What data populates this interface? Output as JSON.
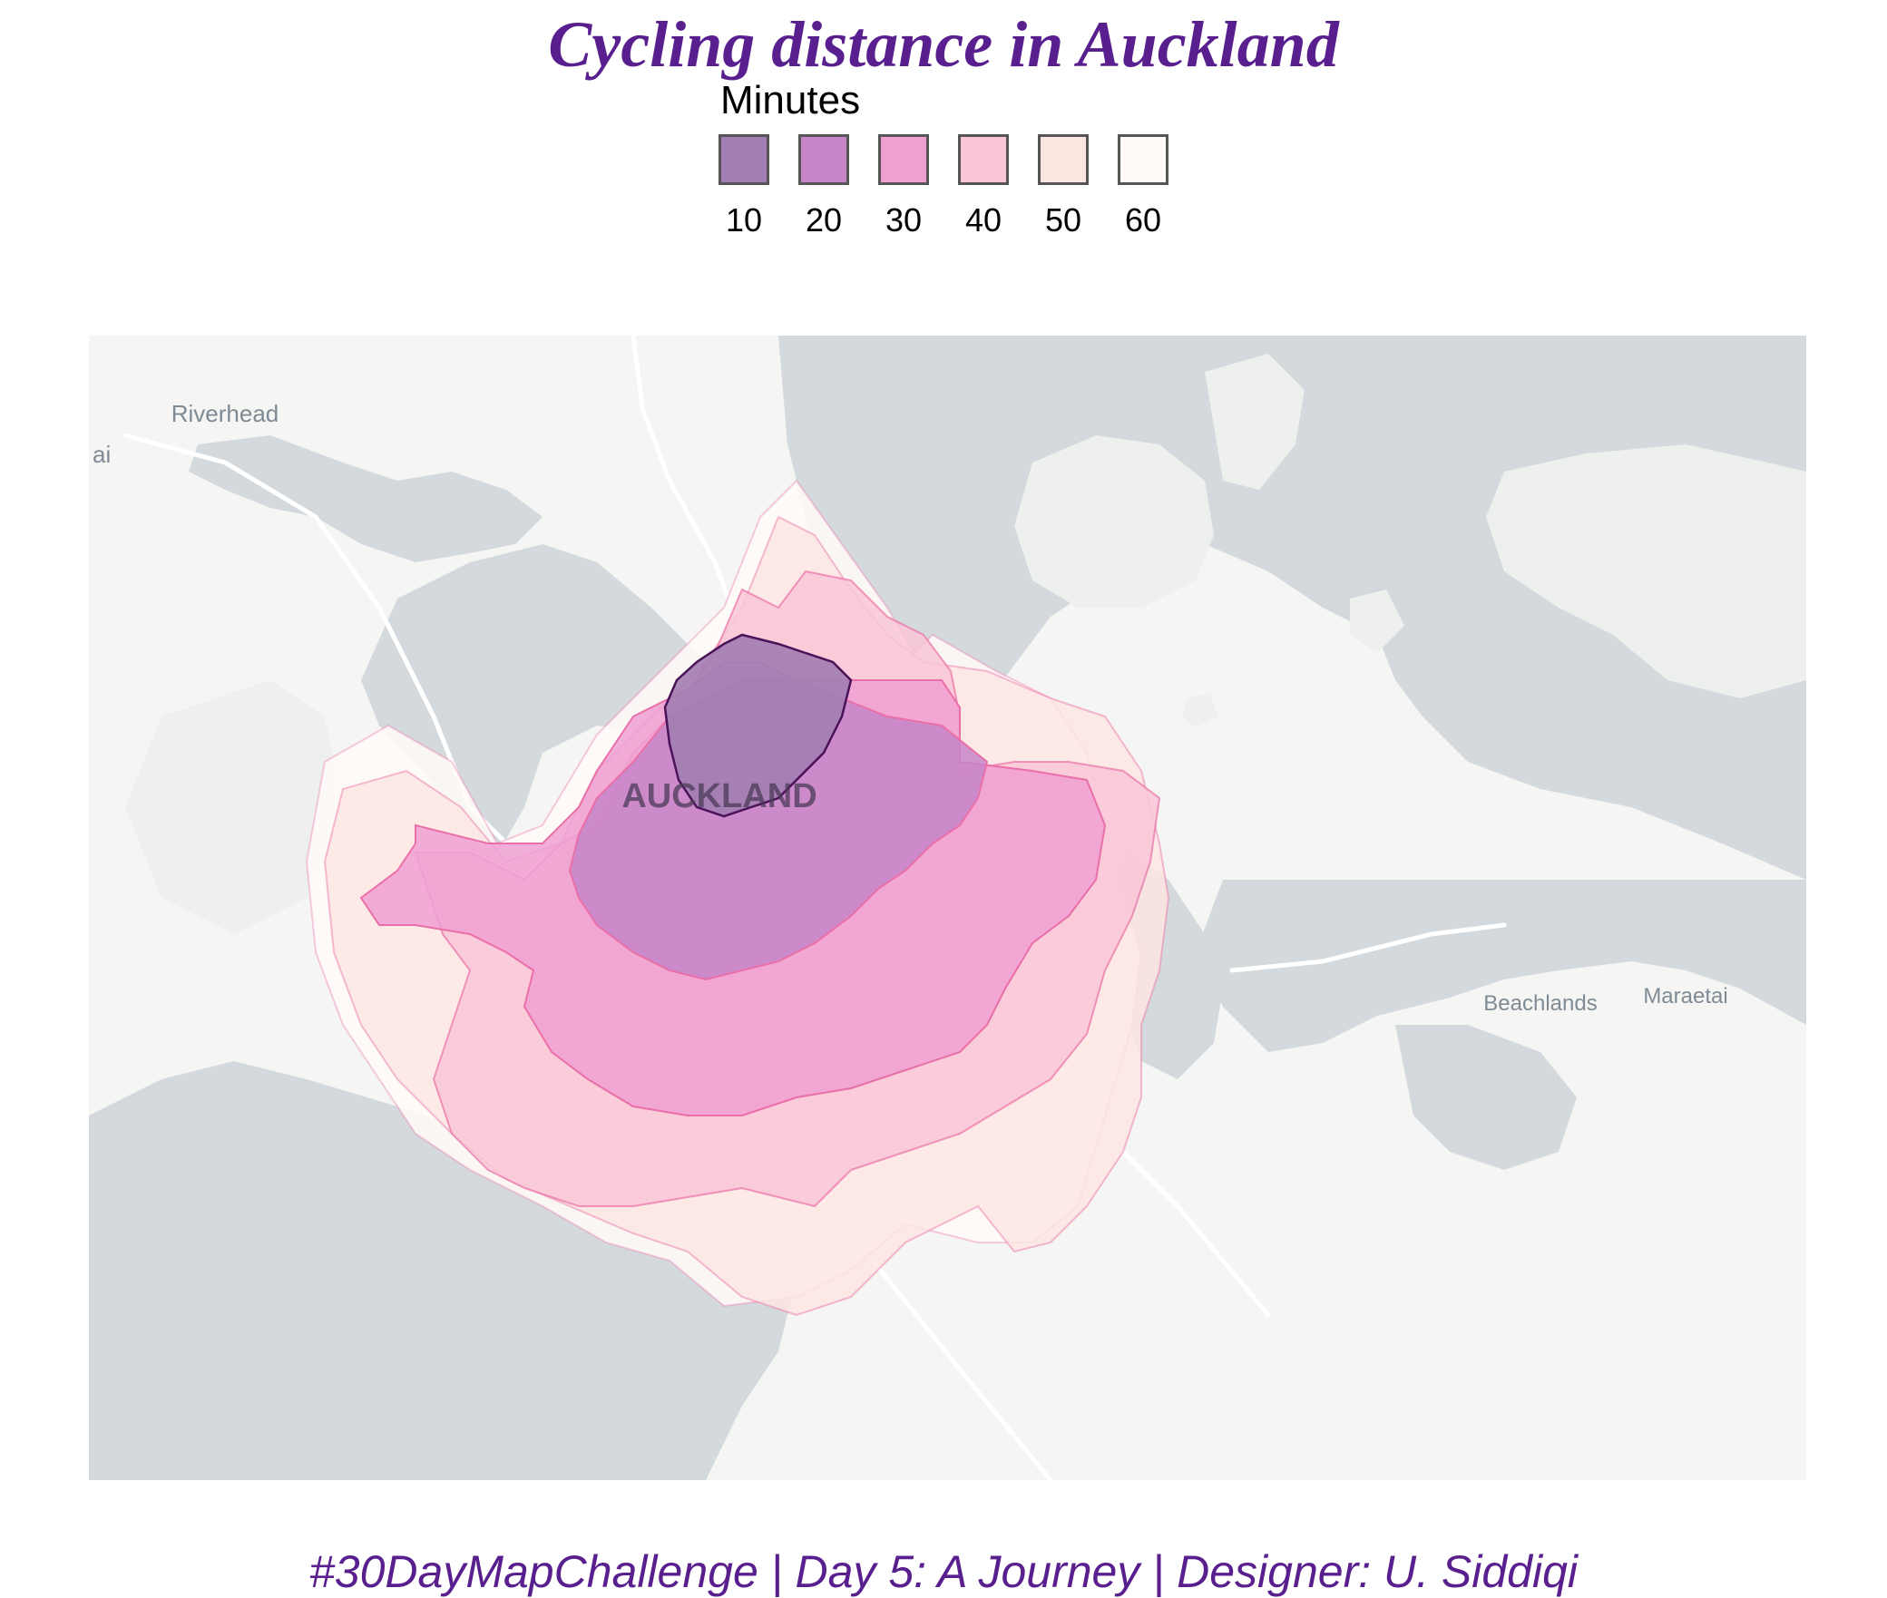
{
  "title": "Cycling distance in Auckland",
  "legend": {
    "title": "Minutes",
    "items": [
      {
        "label": "10",
        "color": "#a27db3"
      },
      {
        "label": "20",
        "color": "#c785c9"
      },
      {
        "label": "30",
        "color": "#eea0d3"
      },
      {
        "label": "40",
        "color": "#f9c6d6"
      },
      {
        "label": "50",
        "color": "#fde5e2"
      },
      {
        "label": "60",
        "color": "#fffaf8"
      }
    ]
  },
  "map": {
    "labels": {
      "auckland": "AUCKLAND",
      "riverhead": "Riverhead",
      "beachlands": "Beachlands",
      "maraetai": "Maraetai",
      "edge_fragment": "ai"
    },
    "colors": {
      "water": "#d4d9dd",
      "land": "#f5f5f4",
      "park": "#eef0ee",
      "road": "#ffffff",
      "isochrone_outline_10": "#4a1259",
      "isochrone_outline": "#ea6fa8"
    }
  },
  "caption": "#30DayMapChallenge | Day 5: A Journey | Designer: U. Siddiqi"
}
